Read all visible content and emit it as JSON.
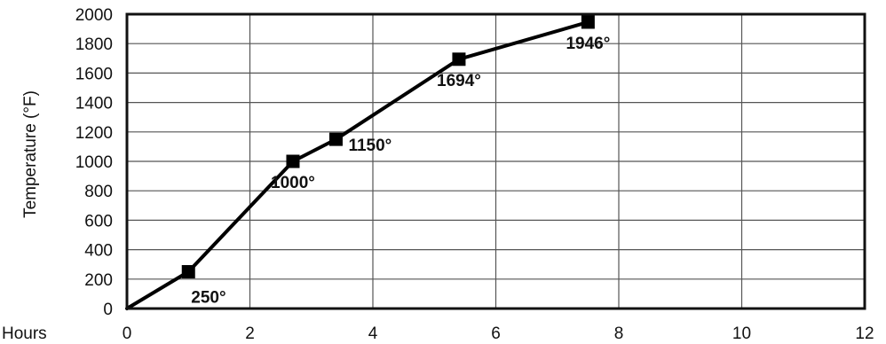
{
  "chart_data": {
    "type": "line",
    "title": "",
    "xlabel": "Hours",
    "ylabel": "Temperature (°F)",
    "xlim": [
      0,
      12
    ],
    "ylim": [
      0,
      2000
    ],
    "x_ticks": [
      0,
      2,
      4,
      6,
      8,
      10,
      12
    ],
    "y_ticks": [
      0,
      200,
      400,
      600,
      800,
      1000,
      1200,
      1400,
      1600,
      1800,
      2000
    ],
    "grid": true,
    "series": [
      {
        "x": [
          0,
          1,
          2.7,
          3.4,
          5.4,
          7.5
        ],
        "y": [
          0,
          250,
          1000,
          1150,
          1694,
          1946
        ],
        "markers": [
          false,
          true,
          true,
          true,
          true,
          true
        ]
      }
    ],
    "data_labels": [
      {
        "text": "250°",
        "x": 1,
        "y": 250,
        "anchor": "below-right"
      },
      {
        "text": "1000°",
        "x": 2.7,
        "y": 1000,
        "anchor": "below"
      },
      {
        "text": "1150°",
        "x": 3.4,
        "y": 1150,
        "anchor": "right"
      },
      {
        "text": "1694°",
        "x": 5.4,
        "y": 1694,
        "anchor": "below"
      },
      {
        "text": "1946°",
        "x": 7.5,
        "y": 1946,
        "anchor": "below"
      }
    ]
  }
}
